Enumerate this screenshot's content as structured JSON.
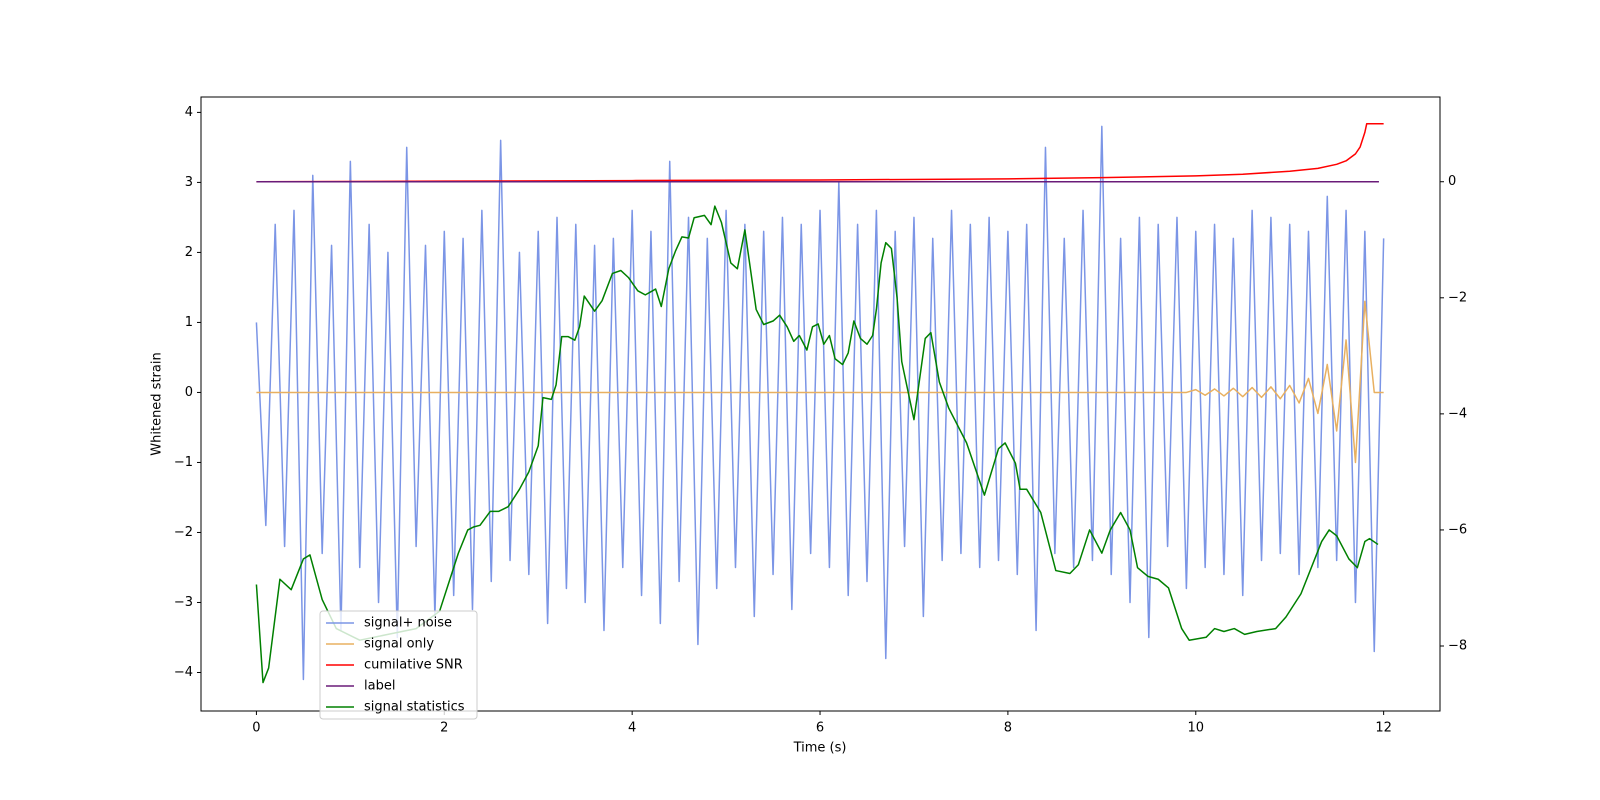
{
  "chart_data": {
    "type": "line",
    "xlabel": "Time (s)",
    "ylabel": "Whitened strain",
    "x": [
      0,
      0.1,
      0.2,
      0.3,
      0.4,
      0.5,
      0.6,
      0.7,
      0.8,
      0.9,
      1,
      1.1,
      1.2,
      1.3,
      1.4,
      1.5,
      1.6,
      1.7,
      1.8,
      1.9,
      2,
      2.1,
      2.2,
      2.3,
      2.4,
      2.5,
      2.6,
      2.7,
      2.8,
      2.9,
      3,
      3.1,
      3.2,
      3.3,
      3.4,
      3.5,
      3.6,
      3.7,
      3.8,
      3.9,
      4,
      4.1,
      4.2,
      4.3,
      4.4,
      4.5,
      4.6,
      4.7,
      4.8,
      4.9,
      5,
      5.1,
      5.2,
      5.3,
      5.4,
      5.5,
      5.6,
      5.7,
      5.8,
      5.9,
      6,
      6.1,
      6.2,
      6.3,
      6.4,
      6.5,
      6.6,
      6.7,
      6.8,
      6.9,
      7,
      7.1,
      7.2,
      7.3,
      7.4,
      7.5,
      7.6,
      7.7,
      7.8,
      7.9,
      8,
      8.1,
      8.2,
      8.3,
      8.4,
      8.5,
      8.6,
      8.7,
      8.8,
      8.9,
      9,
      9.1,
      9.2,
      9.3,
      9.4,
      9.5,
      9.6,
      9.7,
      9.8,
      9.9,
      10,
      10.1,
      10.2,
      10.3,
      10.4,
      10.5,
      10.6,
      10.7,
      10.8,
      10.9,
      11,
      11.1,
      11.2,
      11.3,
      11.4,
      11.5,
      11.6,
      11.7,
      11.8,
      11.9,
      12
    ],
    "series": [
      {
        "name": "signal+ noise",
        "color": "#7b95e6",
        "axis": "y",
        "values": [
          1.0,
          -1.9,
          2.4,
          -2.2,
          2.6,
          -4.1,
          3.1,
          -2.3,
          2.1,
          -3.4,
          3.3,
          -2.5,
          2.4,
          -3.0,
          2.0,
          -3.5,
          3.5,
          -2.2,
          2.1,
          -3.2,
          2.3,
          -2.9,
          2.2,
          -3.1,
          2.6,
          -2.7,
          3.6,
          -2.4,
          2.0,
          -2.6,
          2.3,
          -3.3,
          2.5,
          -2.8,
          2.4,
          -3.0,
          2.1,
          -3.4,
          2.2,
          -2.5,
          2.6,
          -2.9,
          2.3,
          -3.3,
          3.3,
          -2.7,
          2.5,
          -3.6,
          2.2,
          -2.8,
          2.6,
          -2.5,
          2.4,
          -3.2,
          2.3,
          -2.6,
          2.5,
          -3.1,
          2.4,
          -2.3,
          2.6,
          -2.5,
          3.0,
          -2.9,
          2.4,
          -2.7,
          2.6,
          -3.8,
          2.3,
          -2.2,
          2.5,
          -3.2,
          2.2,
          -2.4,
          2.6,
          -2.3,
          2.4,
          -2.5,
          2.5,
          -2.4,
          2.3,
          -2.6,
          2.4,
          -3.4,
          3.5,
          -2.3,
          2.2,
          -2.5,
          2.6,
          -2.4,
          3.8,
          -2.6,
          2.2,
          -3.0,
          2.5,
          -3.5,
          2.4,
          -2.2,
          2.5,
          -2.8,
          2.3,
          -2.5,
          2.4,
          -2.6,
          2.2,
          -2.9,
          2.6,
          -2.4,
          2.5,
          -2.3,
          2.4,
          -2.6,
          2.3,
          -2.5,
          2.8,
          -2.4,
          2.6,
          -3.0,
          2.3,
          -3.7,
          2.2
        ]
      },
      {
        "name": "signal only",
        "color": "#e8b060",
        "axis": "y",
        "values": [
          0,
          0,
          0,
          0,
          0,
          0,
          0,
          0,
          0,
          0,
          0,
          0,
          0,
          0,
          0,
          0,
          0,
          0,
          0,
          0,
          0,
          0,
          0,
          0,
          0,
          0,
          0,
          0,
          0,
          0,
          0,
          0,
          0,
          0,
          0,
          0,
          0,
          0,
          0,
          0,
          0,
          0,
          0,
          0,
          0,
          0,
          0,
          0,
          0,
          0,
          0,
          0,
          0,
          0,
          0,
          0,
          0,
          0,
          0,
          0,
          0,
          0,
          0,
          0,
          0,
          0,
          0,
          0,
          0,
          0,
          0,
          0,
          0,
          0,
          0,
          0,
          0,
          0,
          0,
          0,
          0,
          0,
          0,
          0,
          0,
          0,
          0,
          0,
          0,
          0,
          0,
          0,
          0,
          0,
          0,
          0,
          0,
          0,
          0,
          0,
          0.04,
          -0.04,
          0.05,
          -0.05,
          0.06,
          -0.06,
          0.07,
          -0.07,
          0.08,
          -0.09,
          0.1,
          -0.15,
          0.2,
          -0.3,
          0.4,
          -0.55,
          0.75,
          -1.0,
          1.3,
          0,
          0
        ]
      },
      {
        "name": "cumilative SNR",
        "color": "#ff0000",
        "axis": "y2",
        "x": [
          0,
          2,
          4,
          6,
          8,
          9,
          10,
          10.5,
          11,
          11.3,
          11.5,
          11.6,
          11.7,
          11.75,
          11.8,
          11.82,
          12
        ],
        "values": [
          0,
          0.01,
          0.02,
          0.03,
          0.05,
          0.07,
          0.1,
          0.13,
          0.18,
          0.23,
          0.3,
          0.36,
          0.48,
          0.6,
          0.85,
          1.0,
          1.0
        ]
      },
      {
        "name": "label",
        "color": "#6a1b78",
        "axis": "y2",
        "x": [
          0,
          11.95
        ],
        "values": [
          0,
          0
        ]
      },
      {
        "name": "signal statistics",
        "color": "#008000",
        "axis": "y2",
        "x": [
          0,
          0.07,
          0.13,
          0.25,
          0.37,
          0.5,
          0.57,
          0.7,
          0.85,
          1.1,
          1.4,
          1.7,
          1.95,
          2.05,
          2.15,
          2.25,
          2.31,
          2.38,
          2.49,
          2.58,
          2.68,
          2.8,
          2.9,
          3.0,
          3.05,
          3.14,
          3.19,
          3.25,
          3.32,
          3.39,
          3.44,
          3.49,
          3.6,
          3.68,
          3.79,
          3.88,
          3.96,
          4.06,
          4.14,
          4.25,
          4.31,
          4.39,
          4.46,
          4.53,
          4.6,
          4.66,
          4.77,
          4.84,
          4.88,
          4.95,
          5.05,
          5.12,
          5.2,
          5.32,
          5.4,
          5.5,
          5.57,
          5.65,
          5.72,
          5.78,
          5.86,
          5.92,
          5.98,
          6.04,
          6.1,
          6.16,
          6.24,
          6.3,
          6.36,
          6.43,
          6.5,
          6.56,
          6.6,
          6.65,
          6.7,
          6.76,
          6.82,
          6.87,
          7.0,
          7.12,
          7.18,
          7.27,
          7.37,
          7.56,
          7.75,
          7.9,
          7.97,
          8.08,
          8.13,
          8.2,
          8.35,
          8.51,
          8.66,
          8.75,
          8.87,
          9.0,
          9.09,
          9.2,
          9.3,
          9.38,
          9.49,
          9.6,
          9.71,
          9.85,
          9.93,
          10.11,
          10.2,
          10.3,
          10.41,
          10.52,
          10.65,
          10.85,
          10.96,
          11.12,
          11.34,
          11.42,
          11.5,
          11.63,
          11.72,
          11.8,
          11.85,
          11.94
        ],
        "values": [
          -6.94,
          -8.63,
          -8.38,
          -6.85,
          -7.03,
          -6.5,
          -6.43,
          -7.2,
          -7.7,
          -7.9,
          -7.8,
          -7.7,
          -7.4,
          -6.9,
          -6.4,
          -6.0,
          -5.95,
          -5.92,
          -5.68,
          -5.68,
          -5.6,
          -5.3,
          -5.0,
          -4.55,
          -3.72,
          -3.75,
          -3.5,
          -2.67,
          -2.67,
          -2.73,
          -2.5,
          -1.97,
          -2.23,
          -2.05,
          -1.58,
          -1.53,
          -1.65,
          -1.88,
          -1.95,
          -1.85,
          -2.15,
          -1.5,
          -1.2,
          -0.95,
          -0.97,
          -0.62,
          -0.58,
          -0.74,
          -0.42,
          -0.7,
          -1.4,
          -1.5,
          -0.83,
          -2.2,
          -2.46,
          -2.4,
          -2.3,
          -2.5,
          -2.75,
          -2.65,
          -2.9,
          -2.5,
          -2.45,
          -2.8,
          -2.65,
          -3.05,
          -3.15,
          -2.95,
          -2.4,
          -2.7,
          -2.8,
          -2.65,
          -2.2,
          -1.4,
          -1.05,
          -1.15,
          -2.0,
          -3.1,
          -4.1,
          -2.7,
          -2.6,
          -3.45,
          -3.9,
          -4.5,
          -5.4,
          -4.6,
          -4.5,
          -4.85,
          -5.3,
          -5.3,
          -5.7,
          -6.7,
          -6.75,
          -6.6,
          -6.0,
          -6.4,
          -6.0,
          -5.7,
          -6.0,
          -6.65,
          -6.8,
          -6.85,
          -7.0,
          -7.7,
          -7.9,
          -7.85,
          -7.7,
          -7.75,
          -7.7,
          -7.8,
          -7.75,
          -7.7,
          -7.5,
          -7.1,
          -6.2,
          -6.0,
          -6.1,
          -6.5,
          -6.65,
          -6.2,
          -6.15,
          -6.25
        ]
      }
    ],
    "xlim": [
      -0.59,
      12.6
    ],
    "xticks": [
      0,
      2,
      4,
      6,
      8,
      10,
      12
    ],
    "ylim": [
      -4.55,
      4.22
    ],
    "yticks": [
      {
        "value": -4,
        "label": "−4"
      },
      {
        "value": -3,
        "label": "−3"
      },
      {
        "value": -2,
        "label": "−2"
      },
      {
        "value": -1,
        "label": "−1"
      },
      0,
      1,
      2,
      3,
      4
    ],
    "y2lim": [
      -9.12,
      1.46
    ],
    "y2ticks": [
      {
        "value": -8,
        "label": "−8"
      },
      {
        "value": -6,
        "label": "−6"
      },
      {
        "value": -4,
        "label": "−4"
      },
      {
        "value": -2,
        "label": "−2"
      },
      0
    ]
  }
}
